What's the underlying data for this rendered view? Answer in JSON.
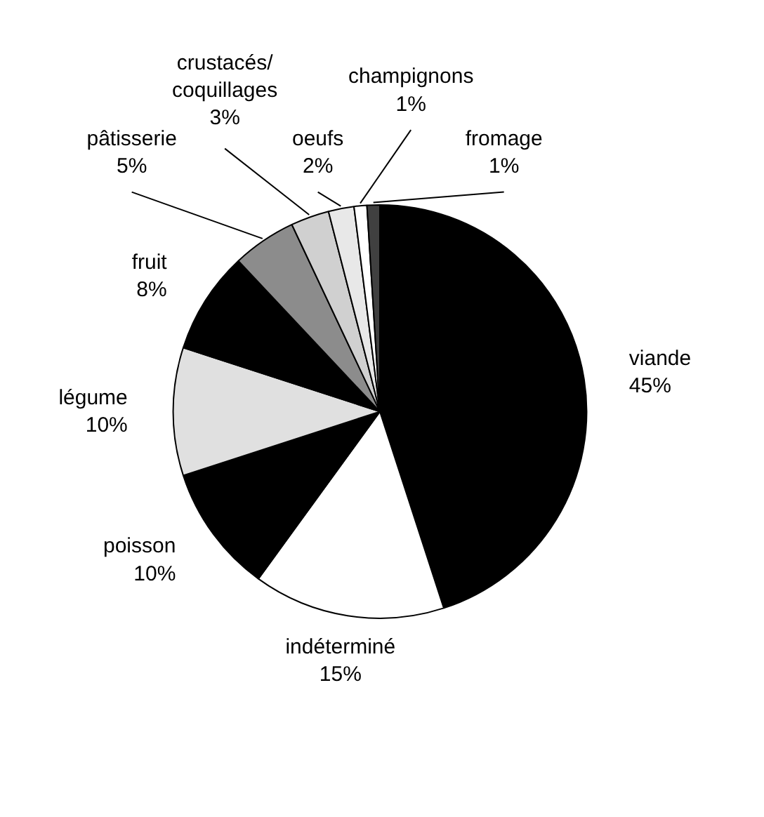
{
  "chart_data": {
    "type": "pie",
    "categories": [
      "viande",
      "indéterminé",
      "poisson",
      "légume",
      "fruit",
      "pâtisserie",
      "crustacés/coquillages",
      "oeufs",
      "champignons",
      "fromage"
    ],
    "values": [
      45,
      15,
      10,
      10,
      8,
      5,
      3,
      2,
      1,
      1
    ],
    "value_labels": [
      "45%",
      "15%",
      "10%",
      "10%",
      "8%",
      "5%",
      "3%",
      "2%",
      "1%",
      "1%"
    ],
    "colors": [
      "#000000",
      "#ffffff",
      "#000000",
      "#e0e0e0",
      "#000000",
      "#8c8c8c",
      "#d0d0d0",
      "#e8e8e8",
      "#ffffff",
      "#404040"
    ]
  }
}
